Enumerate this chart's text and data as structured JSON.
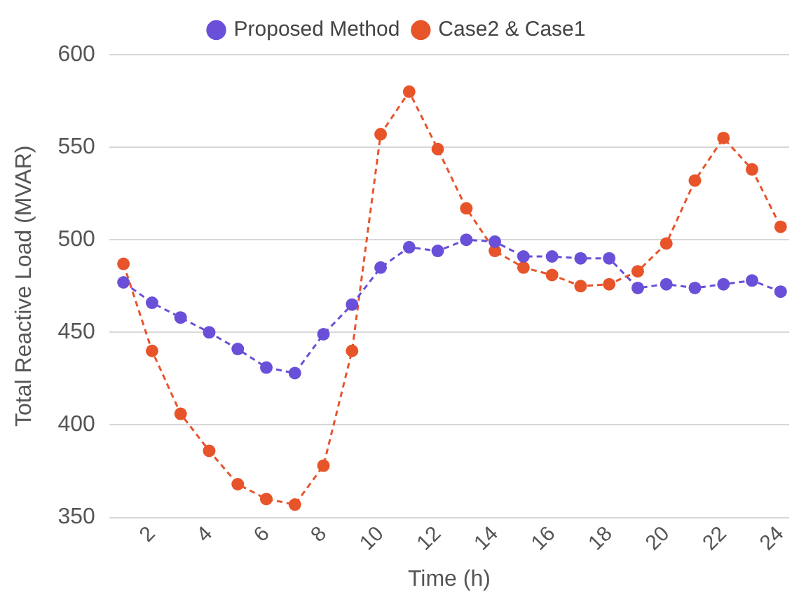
{
  "chart_data": {
    "type": "line",
    "xlabel": "Time (h)",
    "ylabel": "Total Reactive Load (MVAR)",
    "x": [
      1,
      2,
      3,
      4,
      5,
      6,
      7,
      8,
      9,
      10,
      11,
      12,
      13,
      14,
      15,
      16,
      17,
      18,
      19,
      20,
      21,
      22,
      23,
      24
    ],
    "xlim": [
      0.5,
      24.3
    ],
    "xticks": [
      2,
      4,
      6,
      8,
      10,
      12,
      14,
      16,
      18,
      20,
      22,
      24
    ],
    "series": [
      {
        "name": "Proposed Method",
        "color": "#6a4fd8",
        "values": [
          477,
          466,
          458,
          450,
          441,
          431,
          428,
          449,
          465,
          485,
          496,
          494,
          500,
          499,
          491,
          491,
          490,
          490,
          474,
          476,
          474,
          476,
          478,
          472
        ]
      },
      {
        "name": "Case2 & Case1",
        "color": "#e8542a",
        "values": [
          487,
          440,
          406,
          386,
          368,
          360,
          357,
          378,
          440,
          557,
          580,
          549,
          517,
          494,
          485,
          481,
          475,
          476,
          483,
          498,
          532,
          555,
          538,
          507
        ]
      }
    ],
    "ylim": [
      350,
      600
    ],
    "yticks": [
      350,
      400,
      450,
      500,
      550,
      600
    ],
    "grid": "y",
    "legend": "top",
    "marker": "circle",
    "line_style": "dashed"
  }
}
